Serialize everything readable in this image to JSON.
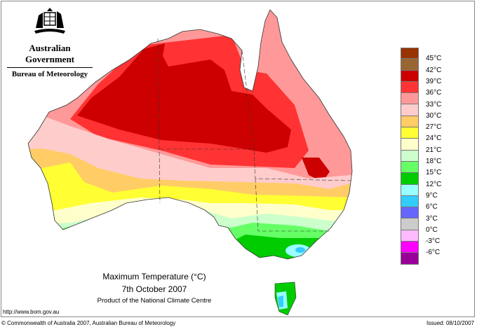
{
  "header": {
    "government": "Australian Government",
    "bureau": "Bureau of Meteorology",
    "crest": "Commonwealth Coat of Arms"
  },
  "legend": {
    "colors": [
      "#993300",
      "#996633",
      "#CC0000",
      "#FF3333",
      "#FF9999",
      "#FFCCCC",
      "#FFCC66",
      "#FFFF33",
      "#FFFFCC",
      "#CCFFCC",
      "#66FF66",
      "#00CC00",
      "#99FFFF",
      "#33CCFF",
      "#6666FF",
      "#CCCCCC",
      "#FFBBFF",
      "#FF00FF",
      "#990099"
    ],
    "labels": [
      "45°C",
      "42°C",
      "39°C",
      "36°C",
      "33°C",
      "30°C",
      "27°C",
      "24°C",
      "21°C",
      "18°C",
      "15°C",
      "12°C",
      "9°C",
      "6°C",
      "3°C",
      "0°C",
      "-3°C",
      "-6°C"
    ]
  },
  "title": {
    "line1": "Maximum Temperature (°C)",
    "line2": "7th October 2007",
    "line3": "Product of the National Climate Centre"
  },
  "footer": {
    "url": "http://www.bom.gov.au",
    "copyright": "© Commonwealth of Australia 2007, Australian Bureau of Meteorology",
    "issued": "Issued: 08/10/2007"
  }
}
